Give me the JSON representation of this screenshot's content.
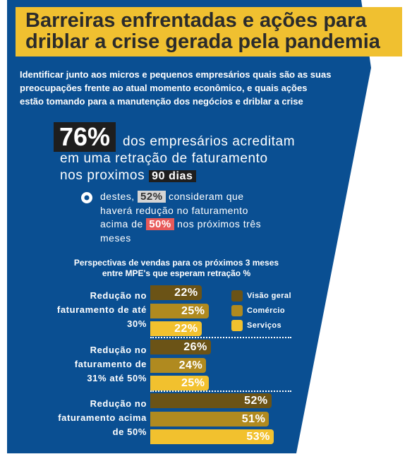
{
  "header": {
    "title": [
      "Barreiras enfrentadas e ações para",
      "driblar a crise gerada pela pandemia"
    ]
  },
  "intro": [
    "Identificar junto aos micros e pequenos empresários quais são as suas",
    "preocupações frente ao atual momento econômico, e quais ações",
    "estão tomando para a manutenção dos negócios e driblar a crise"
  ],
  "highlight": {
    "stat": "76%",
    "line_1": "dos empresários acreditam",
    "line_2": "em uma retração de faturamento",
    "line_3": "nos proximos",
    "days": "90 dias"
  },
  "bullet": {
    "before": "destes,",
    "share": "52%",
    "after": "consideram que",
    "line_2": "haverá redução no faturamento",
    "line_3_before": "acima de",
    "threshold": "50%",
    "line_3_after": "nos próximos três",
    "line_4": "meses"
  },
  "chart_data": {
    "type": "bar",
    "orientation": "horizontal",
    "title": [
      "Perspectivas de vendas para os próximos 3 meses",
      "entre MPE's que esperam retração %"
    ],
    "categories": [
      "Redução no faturamento de até 30%",
      "Redução no faturamento de 31% até 50%",
      "Redução no faturamento acima de 50%"
    ],
    "series": [
      {
        "name": "Visão geral",
        "color": "#6b5316",
        "values": [
          22,
          26,
          52
        ],
        "value_labels": [
          "22%",
          "26%",
          "52%"
        ]
      },
      {
        "name": "Comércio",
        "color": "#b08a1f",
        "values": [
          25,
          24,
          51
        ],
        "value_labels": [
          "25%",
          "24%",
          "51%"
        ]
      },
      {
        "name": "Serviços",
        "color": "#f2c12e",
        "values": [
          22,
          25,
          53
        ],
        "value_labels": [
          "22%",
          "25%",
          "53%"
        ]
      }
    ]
  }
}
